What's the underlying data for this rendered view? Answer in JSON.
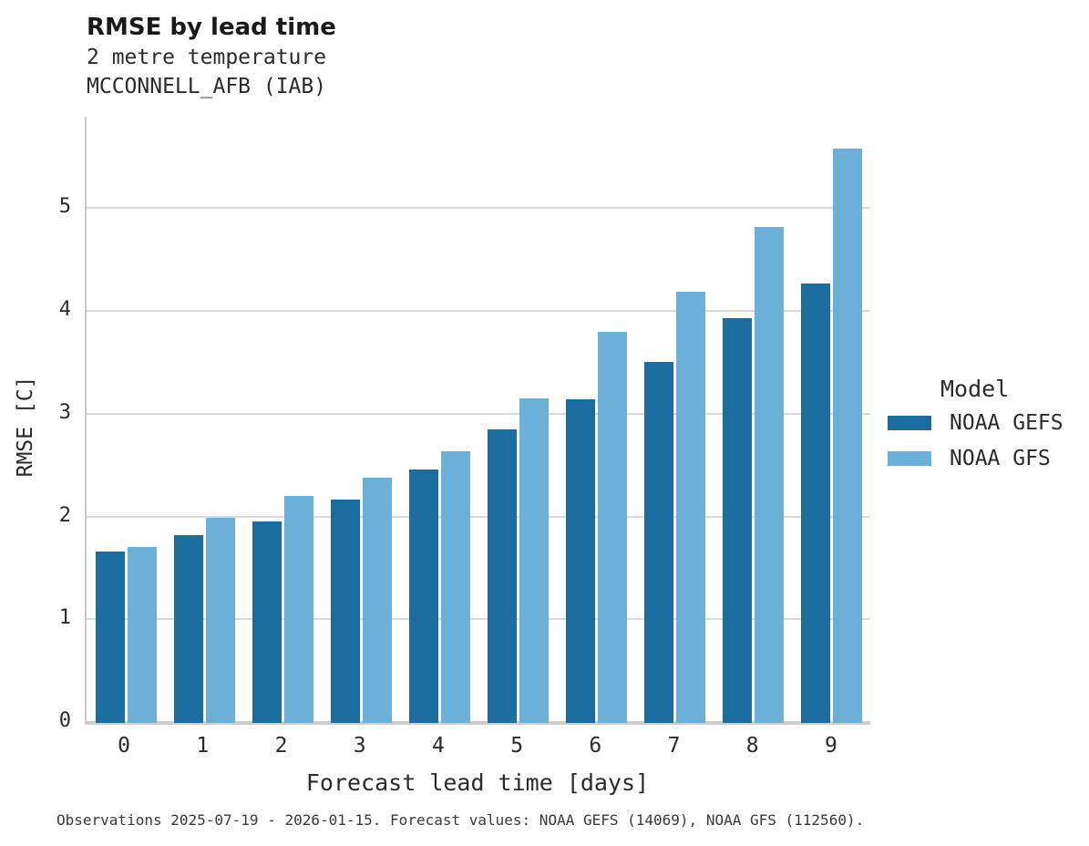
{
  "header": {
    "title": "RMSE by lead time",
    "subtitle_line1": "2 metre temperature",
    "subtitle_line2": "MCCONNELL_AFB (IAB)"
  },
  "legend": {
    "title": "Model",
    "entries": [
      {
        "label": "NOAA GEFS",
        "color": "#1a6d9e"
      },
      {
        "label": "NOAA GFS",
        "color": "#6cb0d8"
      }
    ]
  },
  "caption": "Observations 2025-07-19 - 2026-01-15. Forecast values: NOAA GEFS (14069), NOAA GFS (112560).",
  "chart_data": {
    "type": "bar",
    "title": "RMSE by lead time",
    "subtitle": [
      "2 metre temperature",
      "MCCONNELL_AFB (IAB)"
    ],
    "categories": [
      "0",
      "1",
      "2",
      "3",
      "4",
      "5",
      "6",
      "7",
      "8",
      "9"
    ],
    "series": [
      {
        "name": "NOAA GEFS",
        "color": "#1a6d9e",
        "values": [
          1.67,
          1.83,
          1.96,
          2.17,
          2.47,
          2.86,
          3.15,
          3.51,
          3.94,
          4.28
        ]
      },
      {
        "name": "NOAA GFS",
        "color": "#6cb0d8",
        "values": [
          1.71,
          2.0,
          2.21,
          2.39,
          2.64,
          3.16,
          3.81,
          4.2,
          4.83,
          5.59
        ]
      }
    ],
    "xlabel": "Forecast lead time [days]",
    "ylabel": "RMSE [C]",
    "ylim": [
      0,
      5.9
    ],
    "yticks": [
      0,
      1,
      2,
      3,
      4,
      5
    ],
    "grid": "horizontal",
    "legend_position": "right",
    "legend_title": "Model",
    "gridline_color": "#d9d9d9"
  }
}
